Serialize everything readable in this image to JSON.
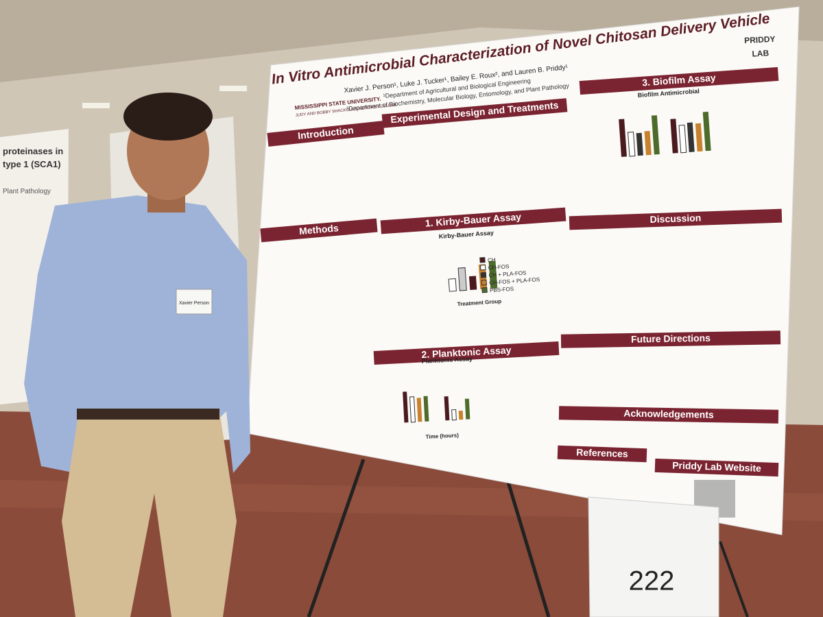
{
  "poster": {
    "title": "In Vitro Antimicrobial Characterization of Novel Chitosan Delivery Vehicle",
    "authors": "Xavier J. Person¹, Luke J. Tucker¹, Bailey E. Roux², and Lauren B. Priddy¹",
    "affiliations": [
      "¹Department of Agricultural and Biological Engineering",
      "²Department of Biochemistry, Molecular Biology, Entomology, and Plant Pathology"
    ],
    "institution": [
      "MISSISSIPPI STATE UNIVERSITY.",
      "JUDY AND BOBBY SHACKOULS HONORS COLLEGE"
    ],
    "lab": [
      "PRIDDY",
      "LAB"
    ],
    "sections": [
      "Introduction",
      "Methods",
      "Experimental Design and Treatments",
      "1. Kirby-Bauer Assay",
      "2. Planktonic Assay",
      "3. Biofilm Assay",
      "Discussion",
      "Future Directions",
      "Acknowledgements",
      "References",
      "Priddy Lab Website"
    ],
    "chart_titles": [
      "Kirby-Bauer Assay",
      "Planktonic Assay",
      "Biofilm Antimicrobial"
    ],
    "legend": [
      "CH",
      "CH-FOS",
      "CH + PLA-FOS",
      "CH-FOS + PLA-FOS",
      "PBS-FOS"
    ],
    "axis_labels": [
      "Treatment Group",
      "Time (hours)"
    ]
  },
  "name_tag": "Xavier Person",
  "sign_number": "222",
  "side_poster": [
    "proteinases in",
    "type 1 (SCA1)",
    "Plant Pathology"
  ]
}
